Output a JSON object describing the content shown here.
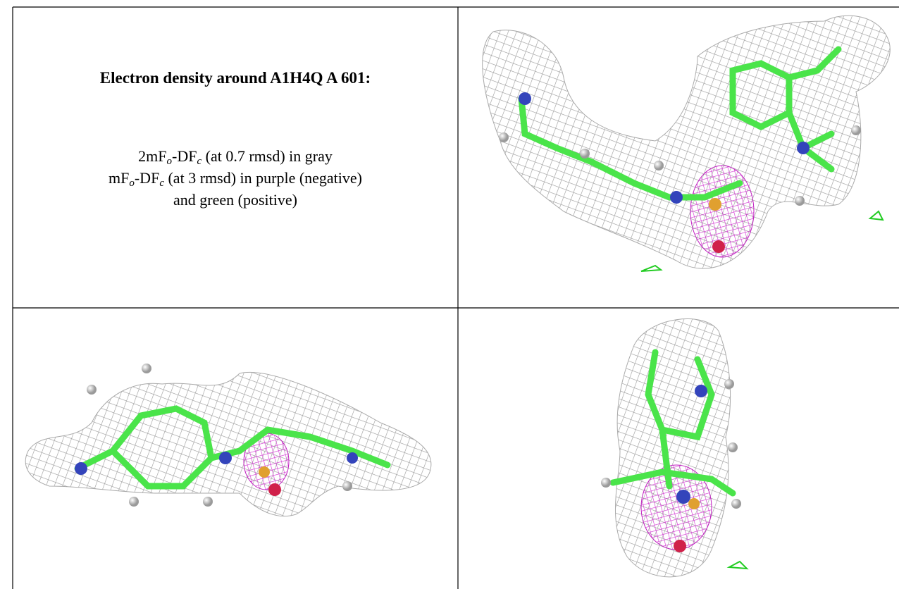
{
  "legend": {
    "title": "Electron density around A1H4Q A 601:",
    "lines": [
      [
        "2mF",
        "o",
        "-DF",
        "c",
        " (at 0.7 rmsd) in gray"
      ],
      [
        "mF",
        "o",
        "-DF",
        "c",
        " (at 3 rmsd) in purple (negative)"
      ],
      [
        "and green (positive)"
      ]
    ]
  }
}
